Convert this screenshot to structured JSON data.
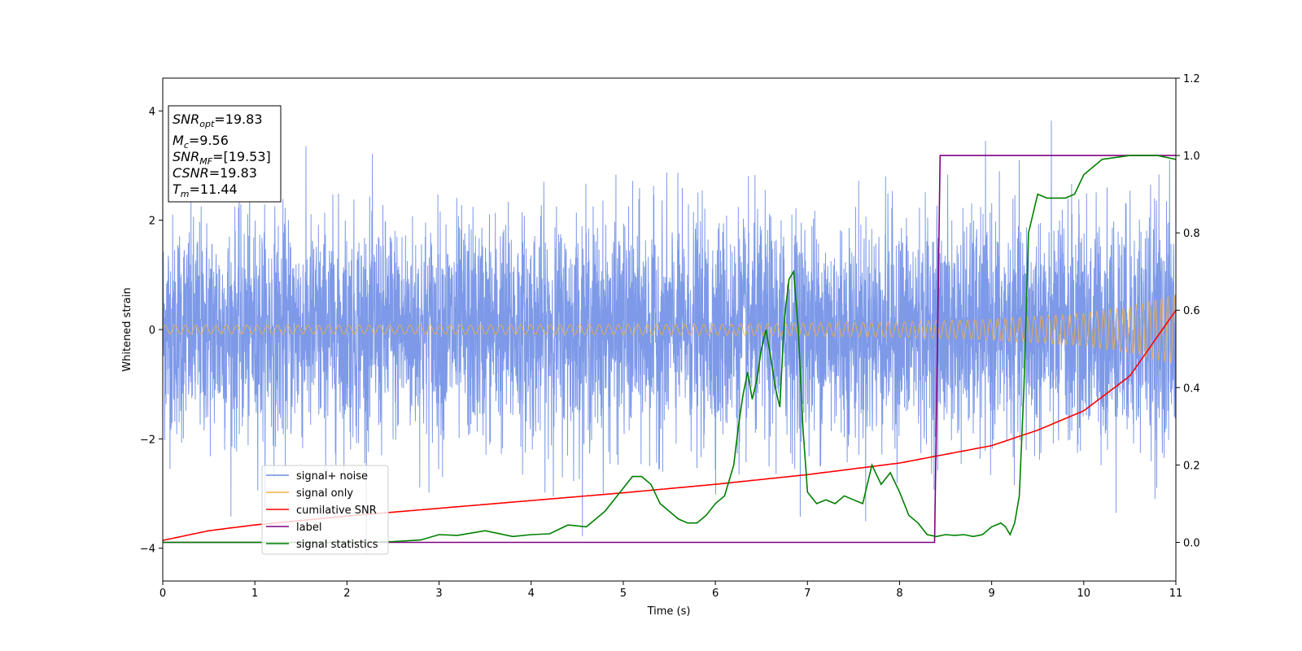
{
  "chart_data": {
    "type": "line",
    "xlabel": "Time (s)",
    "ylabel": "Whitened strain",
    "xlim": [
      0,
      11
    ],
    "ylim": [
      -4.6,
      4.6
    ],
    "y2lim": [
      -0.1,
      1.2
    ],
    "xticks": [
      0,
      1,
      2,
      3,
      4,
      5,
      6,
      7,
      8,
      9,
      10,
      11
    ],
    "yticks": [
      -4,
      -2,
      0,
      2,
      4
    ],
    "y2ticks": [
      "0.0",
      "0.2",
      "0.4",
      "0.6",
      "0.8",
      "1.0",
      "1.2"
    ],
    "grid": false,
    "legend_position": "lower-left",
    "annotation_box": {
      "position": "top-left",
      "entries": [
        {
          "base": "SNR",
          "sub": "opt",
          "value": "=19.83"
        },
        {
          "base": "M",
          "sub": "c",
          "value": "=9.56"
        },
        {
          "base": "SNR",
          "sub": "MF",
          "value": "=[19.53]"
        },
        {
          "base": "CSNR",
          "sub": "",
          "value": "=19.83"
        },
        {
          "base": "T",
          "sub": "m",
          "value": "=11.44"
        }
      ]
    },
    "series": [
      {
        "name": "signal+ noise",
        "color": "#6f8ee6",
        "axis": "left",
        "noise_std": 1.0,
        "range": [
          -4.15,
          4.2
        ]
      },
      {
        "name": "signal only",
        "color": "#f5b041",
        "axis": "left",
        "envelope": {
          "x": [
            0,
            2,
            4,
            6,
            8,
            9,
            10,
            10.5,
            11
          ],
          "y": [
            0.08,
            0.08,
            0.09,
            0.1,
            0.14,
            0.19,
            0.3,
            0.42,
            0.65
          ]
        }
      },
      {
        "name": "cumilative SNR",
        "color": "#ff0000",
        "axis": "right",
        "x": [
          0,
          0.5,
          1,
          2,
          3,
          4,
          5,
          6,
          7,
          8,
          9,
          9.5,
          10,
          10.5,
          11
        ],
        "y": [
          0.005,
          0.03,
          0.045,
          0.068,
          0.088,
          0.108,
          0.128,
          0.15,
          0.175,
          0.205,
          0.25,
          0.29,
          0.34,
          0.43,
          0.6
        ]
      },
      {
        "name": "label",
        "color": "#800080",
        "axis": "right",
        "x": [
          0,
          8.38,
          8.44,
          11
        ],
        "y": [
          0,
          0,
          1,
          1
        ]
      },
      {
        "name": "signal statistics",
        "color": "#008000",
        "axis": "right",
        "x": [
          0,
          1,
          2,
          2.5,
          2.8,
          3,
          3.2,
          3.5,
          3.8,
          4,
          4.2,
          4.4,
          4.6,
          4.8,
          4.9,
          5.0,
          5.1,
          5.2,
          5.3,
          5.4,
          5.5,
          5.6,
          5.7,
          5.8,
          5.9,
          6.0,
          6.1,
          6.2,
          6.25,
          6.3,
          6.35,
          6.4,
          6.45,
          6.5,
          6.55,
          6.6,
          6.65,
          6.7,
          6.75,
          6.8,
          6.85,
          6.9,
          6.95,
          7.0,
          7.1,
          7.2,
          7.3,
          7.4,
          7.5,
          7.6,
          7.7,
          7.8,
          7.9,
          8.0,
          8.1,
          8.2,
          8.3,
          8.4,
          8.5,
          8.6,
          8.7,
          8.8,
          8.9,
          9.0,
          9.1,
          9.15,
          9.2,
          9.25,
          9.3,
          9.35,
          9.4,
          9.5,
          9.6,
          9.7,
          9.8,
          9.9,
          10.0,
          10.2,
          10.5,
          10.8,
          11.0
        ],
        "y": [
          0.0,
          0.0,
          0.0,
          0.002,
          0.006,
          0.02,
          0.018,
          0.03,
          0.015,
          0.02,
          0.022,
          0.045,
          0.04,
          0.08,
          0.11,
          0.14,
          0.17,
          0.17,
          0.15,
          0.1,
          0.08,
          0.06,
          0.05,
          0.05,
          0.07,
          0.1,
          0.12,
          0.2,
          0.3,
          0.38,
          0.44,
          0.37,
          0.42,
          0.5,
          0.55,
          0.48,
          0.4,
          0.35,
          0.58,
          0.68,
          0.7,
          0.55,
          0.3,
          0.13,
          0.1,
          0.11,
          0.1,
          0.12,
          0.11,
          0.1,
          0.2,
          0.15,
          0.18,
          0.13,
          0.07,
          0.05,
          0.02,
          0.015,
          0.02,
          0.018,
          0.02,
          0.015,
          0.02,
          0.04,
          0.05,
          0.04,
          0.02,
          0.05,
          0.12,
          0.4,
          0.8,
          0.9,
          0.89,
          0.89,
          0.89,
          0.9,
          0.95,
          0.99,
          1.0,
          1.0,
          0.99
        ]
      }
    ]
  }
}
